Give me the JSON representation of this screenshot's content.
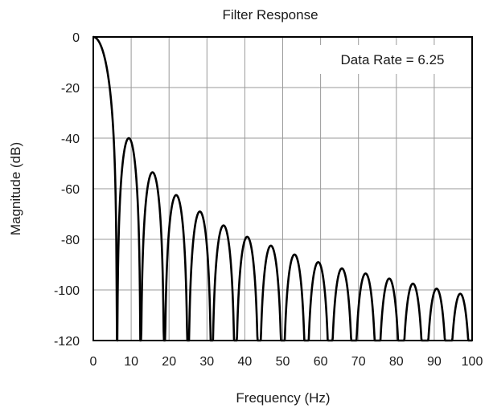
{
  "chart_data": {
    "type": "line",
    "title": "Filter Response",
    "xlabel": "Frequency (Hz)",
    "ylabel": "Magnitude (dB)",
    "xlim": [
      0,
      100
    ],
    "ylim": [
      -120,
      0
    ],
    "x_ticks": [
      "0",
      "10",
      "20",
      "30",
      "40",
      "50",
      "60",
      "70",
      "80",
      "90",
      "100"
    ],
    "y_ticks": [
      "0",
      "-20",
      "-40",
      "-60",
      "-80",
      "-100",
      "-120"
    ],
    "grid": true,
    "annotation": "Data Rate = 6.25",
    "series": [
      {
        "filter_nulls_hz": [
          6.25,
          12.5,
          18.75,
          25,
          31.25,
          37.5,
          43.75,
          50,
          56.25,
          62.5,
          68.75,
          75,
          81.25,
          87.5,
          93.75,
          100
        ],
        "lobe_peaks": [
          {
            "x": 0,
            "y": 0
          },
          {
            "x": 9,
            "y": -40
          },
          {
            "x": 15.5,
            "y": -53.5
          },
          {
            "x": 21.9,
            "y": -62.5
          },
          {
            "x": 28.2,
            "y": -69
          },
          {
            "x": 34.4,
            "y": -74.5
          },
          {
            "x": 40.7,
            "y": -79
          },
          {
            "x": 46.9,
            "y": -82.5
          },
          {
            "x": 53.2,
            "y": -86
          },
          {
            "x": 59.4,
            "y": -89
          },
          {
            "x": 65.7,
            "y": -91.5
          },
          {
            "x": 71.9,
            "y": -93.5
          },
          {
            "x": 78.2,
            "y": -95.5
          },
          {
            "x": 84.4,
            "y": -97.5
          },
          {
            "x": 90.7,
            "y": -99.5
          },
          {
            "x": 96.9,
            "y": -101.5
          }
        ]
      }
    ]
  }
}
